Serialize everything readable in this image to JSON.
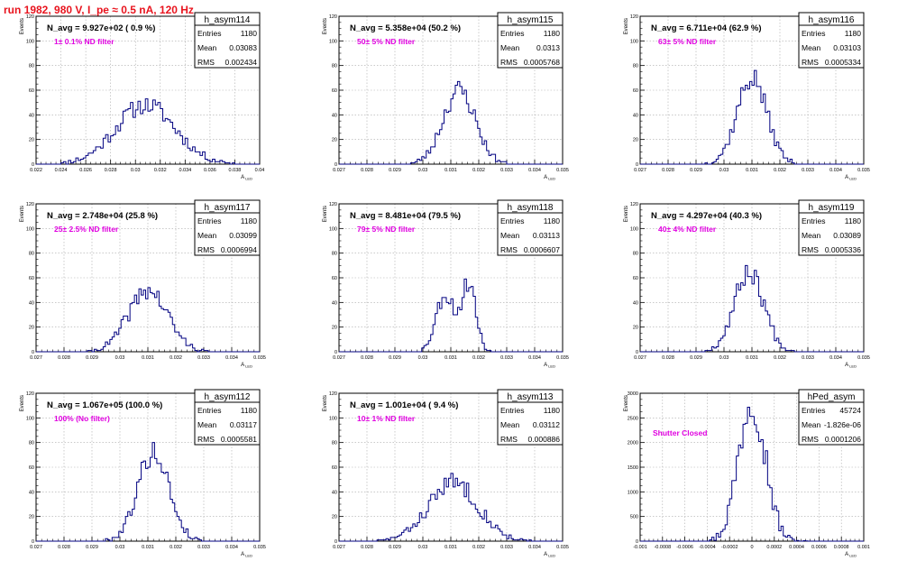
{
  "run_title": "run 1982,   980 V, I_pe ≈ 0.5 nA, 120 Hz",
  "colors": {
    "hist": "#000080",
    "title": "#e8141e",
    "annotation": "#e000e0",
    "grid": "#aaaaaa"
  },
  "stats_labels": {
    "entries": "Entries",
    "mean": "Mean",
    "rms": "RMS"
  },
  "chart_data": [
    {
      "type": "histogram",
      "name": "h_asym114",
      "navg": "N_avg = 9.927e+02 ( 0.9 %)",
      "note": "1± 0.1% ND filter",
      "entries": "1180",
      "mean": "0.03083",
      "rms": "0.002434",
      "xlabel": "A",
      "xlabel_sub": "LED",
      "ylabel": "Events",
      "xlim": [
        0.022,
        0.04
      ],
      "ylim": [
        0,
        120
      ],
      "xticks": [
        "0.022",
        "0.024",
        "0.026",
        "0.028",
        "0.03",
        "0.032",
        "0.034",
        "0.036",
        "0.038",
        "0.04"
      ],
      "yticks": [
        "0",
        "20",
        "40",
        "60",
        "80",
        "100",
        "120"
      ],
      "dist": {
        "mu": 0.0308,
        "sigma": 0.0024,
        "peak": 48,
        "bins": 90,
        "seed": 11
      }
    },
    {
      "type": "histogram",
      "name": "h_asym115",
      "navg": "N_avg = 5.358e+04 (50.2 %)",
      "note": "50± 5% ND filter",
      "entries": "1180",
      "mean": "0.0313",
      "rms": "0.0005768",
      "xlabel": "A",
      "xlabel_sub": "LED",
      "ylabel": "Events",
      "xlim": [
        0.027,
        0.035
      ],
      "ylim": [
        0,
        120
      ],
      "xticks": [
        "0.027",
        "0.028",
        "0.029",
        "0.03",
        "0.031",
        "0.032",
        "0.033",
        "0.034",
        "0.035"
      ],
      "yticks": [
        "0",
        "20",
        "40",
        "60",
        "80",
        "100",
        "120"
      ],
      "dist": {
        "mu": 0.0313,
        "sigma": 0.00058,
        "peak": 60,
        "bins": 100,
        "seed": 23
      }
    },
    {
      "type": "histogram",
      "name": "h_asym116",
      "navg": "N_avg = 6.711e+04 (62.9 %)",
      "note": "63± 5% ND filter",
      "entries": "1180",
      "mean": "0.03103",
      "rms": "0.0005334",
      "xlabel": "A",
      "xlabel_sub": "LED",
      "ylabel": "Events",
      "xlim": [
        0.027,
        0.035
      ],
      "ylim": [
        0,
        120
      ],
      "xticks": [
        "0.027",
        "0.028",
        "0.029",
        "0.03",
        "0.031",
        "0.032",
        "0.033",
        "0.034",
        "0.035"
      ],
      "yticks": [
        "0",
        "20",
        "40",
        "60",
        "80",
        "100",
        "120"
      ],
      "dist": {
        "mu": 0.031,
        "sigma": 0.00053,
        "peak": 70,
        "bins": 100,
        "seed": 37
      }
    },
    {
      "type": "histogram",
      "name": "h_asym117",
      "navg": "N_avg = 2.748e+04 (25.8 %)",
      "note": "25± 2.5% ND filter",
      "entries": "1180",
      "mean": "0.03099",
      "rms": "0.0006994",
      "xlabel": "A",
      "xlabel_sub": "LED",
      "ylabel": "Events",
      "xlim": [
        0.027,
        0.035
      ],
      "ylim": [
        0,
        120
      ],
      "xticks": [
        "0.027",
        "0.028",
        "0.029",
        "0.03",
        "0.031",
        "0.032",
        "0.033",
        "0.034",
        "0.035"
      ],
      "yticks": [
        "0",
        "20",
        "40",
        "60",
        "80",
        "100",
        "120"
      ],
      "dist": {
        "mu": 0.031,
        "sigma": 0.0007,
        "peak": 50,
        "bins": 100,
        "seed": 41
      }
    },
    {
      "type": "histogram",
      "name": "h_asym118",
      "navg": "N_avg = 8.481e+04 (79.5 %)",
      "note": "79± 5% ND filter",
      "entries": "1180",
      "mean": "0.03113",
      "rms": "0.0006607",
      "xlabel": "A",
      "xlabel_sub": "LED",
      "ylabel": "Events",
      "xlim": [
        0.027,
        0.035
      ],
      "ylim": [
        0,
        120
      ],
      "xticks": [
        "0.027",
        "0.028",
        "0.029",
        "0.03",
        "0.031",
        "0.032",
        "0.033",
        "0.034",
        "0.035"
      ],
      "yticks": [
        "0",
        "20",
        "40",
        "60",
        "80",
        "100",
        "120"
      ],
      "dist": {
        "mu": 0.03113,
        "sigma": 0.00066,
        "peak": 55,
        "bins": 100,
        "seed": 53,
        "bimodal": true
      }
    },
    {
      "type": "histogram",
      "name": "h_asym119",
      "navg": "N_avg = 4.297e+04 (40.3 %)",
      "note": "40± 4% ND filter",
      "entries": "1180",
      "mean": "0.03089",
      "rms": "0.0005336",
      "xlabel": "A",
      "xlabel_sub": "LED",
      "ylabel": "Events",
      "xlim": [
        0.027,
        0.035
      ],
      "ylim": [
        0,
        120
      ],
      "xticks": [
        "0.027",
        "0.028",
        "0.029",
        "0.03",
        "0.031",
        "0.032",
        "0.033",
        "0.034",
        "0.035"
      ],
      "yticks": [
        "0",
        "20",
        "40",
        "60",
        "80",
        "100",
        "120"
      ],
      "dist": {
        "mu": 0.0309,
        "sigma": 0.00053,
        "peak": 65,
        "bins": 100,
        "seed": 67
      }
    },
    {
      "type": "histogram",
      "name": "h_asym112",
      "navg": "N_avg = 1.067e+05 (100.0 %)",
      "note": "100% (No filter)",
      "entries": "1180",
      "mean": "0.03117",
      "rms": "0.0005581",
      "xlabel": "A",
      "xlabel_sub": "LED",
      "ylabel": "Events",
      "xlim": [
        0.027,
        0.035
      ],
      "ylim": [
        0,
        120
      ],
      "xticks": [
        "0.027",
        "0.028",
        "0.029",
        "0.03",
        "0.031",
        "0.032",
        "0.033",
        "0.034",
        "0.035"
      ],
      "yticks": [
        "0",
        "20",
        "40",
        "60",
        "80",
        "100",
        "120"
      ],
      "dist": {
        "mu": 0.0312,
        "sigma": 0.00056,
        "peak": 72,
        "bins": 100,
        "seed": 79
      }
    },
    {
      "type": "histogram",
      "name": "h_asym113",
      "navg": "N_avg = 1.001e+04 ( 9.4 %)",
      "note": "10± 1% ND filter",
      "entries": "1180",
      "mean": "0.03112",
      "rms": "0.000886",
      "xlabel": "A",
      "xlabel_sub": "LED",
      "ylabel": "Events",
      "xlim": [
        0.027,
        0.035
      ],
      "ylim": [
        0,
        120
      ],
      "xticks": [
        "0.027",
        "0.028",
        "0.029",
        "0.03",
        "0.031",
        "0.032",
        "0.033",
        "0.034",
        "0.035"
      ],
      "yticks": [
        "0",
        "20",
        "40",
        "60",
        "80",
        "100",
        "120"
      ],
      "dist": {
        "mu": 0.0311,
        "sigma": 0.00088,
        "peak": 48,
        "bins": 100,
        "seed": 83
      }
    },
    {
      "type": "histogram",
      "name": "hPed_asym",
      "navg": "",
      "note": "Shutter Closed",
      "entries": "45724",
      "mean": "-1.826e-06",
      "rms": "0.0001206",
      "xlabel": "A",
      "xlabel_sub": "LED",
      "ylabel": "Events",
      "xlim": [
        -0.001,
        0.001
      ],
      "ylim": [
        0,
        3000
      ],
      "xticks": [
        "-0.001",
        "-0.0008",
        "-0.0006",
        "-0.0004",
        "-0.0002",
        "0",
        "0.0002",
        "0.0004",
        "0.0006",
        "0.0008",
        "0.001"
      ],
      "yticks": [
        "0",
        "500",
        "1000",
        "1500",
        "2000",
        "2500",
        "3000"
      ],
      "dist": {
        "mu": 0.0,
        "sigma": 0.00012,
        "peak": 2900,
        "bins": 100,
        "seed": 97
      }
    }
  ]
}
